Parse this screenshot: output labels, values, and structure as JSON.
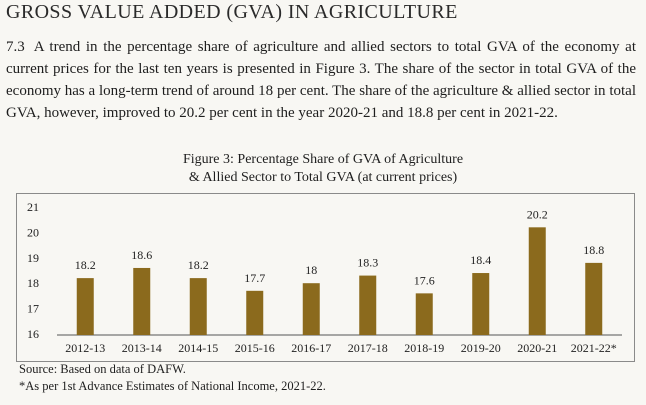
{
  "heading": "GROSS VALUE ADDED (GVA) IN AGRICULTURE",
  "paragraph": {
    "number": "7.3",
    "text": "A trend in the percentage share of agriculture and allied sectors to total GVA of the economy at current prices for the last ten years is presented in Figure 3. The share of the sector in total GVA of the economy has a long-term trend of around 18 per cent. The share of the agriculture & allied sector in total GVA, however, improved to 20.2 per cent in the year 2020-21 and 18.8 per cent in 2021-22."
  },
  "figure": {
    "title_line1": "Figure 3: Percentage Share of GVA of Agriculture",
    "title_line2": "& Allied Sector to Total GVA (at current prices)"
  },
  "chart_data": {
    "type": "bar",
    "categories": [
      "2012-13",
      "2013-14",
      "2014-15",
      "2015-16",
      "2016-17",
      "2017-18",
      "2018-19",
      "2019-20",
      "2020-21",
      "2021-22*"
    ],
    "values": [
      18.2,
      18.6,
      18.2,
      17.7,
      18,
      18.3,
      17.6,
      18.4,
      20.2,
      18.8
    ],
    "value_labels": [
      "18.2",
      "18.6",
      "18.2",
      "17.7",
      "18",
      "18.3",
      "17.6",
      "18.4",
      "20.2",
      "18.8"
    ],
    "yticks": [
      "16",
      "17",
      "18",
      "19",
      "20",
      "21"
    ],
    "ylim": [
      16,
      21
    ],
    "grid": false,
    "bar_color": "#8b6a1d"
  },
  "footnotes": {
    "source": "Source: Based on data of DAFW.",
    "note": "*As per 1st Advance Estimates of National Income, 2021-22."
  }
}
